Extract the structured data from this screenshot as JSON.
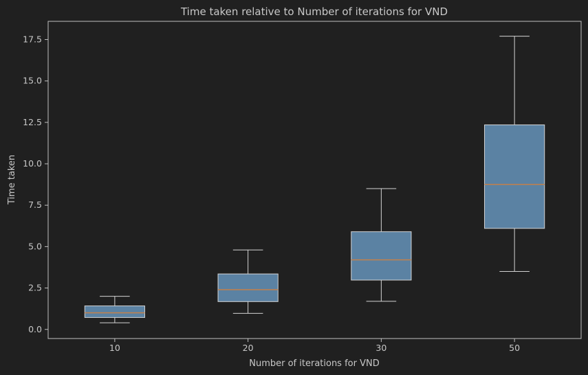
{
  "chart_data": {
    "type": "box",
    "title": "Time taken relative to Number of iterations for VND",
    "xlabel": "Number of iterations for VND",
    "ylabel": "Time taken",
    "categories": [
      "10",
      "20",
      "30",
      "50"
    ],
    "boxes": [
      {
        "category": "10",
        "whisker_low": 0.4,
        "q1": 0.72,
        "median": 1.0,
        "q3": 1.42,
        "whisker_high": 2.0
      },
      {
        "category": "20",
        "whisker_low": 0.97,
        "q1": 1.68,
        "median": 2.4,
        "q3": 3.35,
        "whisker_high": 4.8
      },
      {
        "category": "30",
        "whisker_low": 1.7,
        "q1": 2.98,
        "median": 4.2,
        "q3": 5.9,
        "whisker_high": 8.5
      },
      {
        "category": "50",
        "whisker_low": 3.5,
        "q1": 6.1,
        "median": 8.75,
        "q3": 12.35,
        "whisker_high": 17.7
      }
    ],
    "ylim": [
      -0.55,
      18.6
    ],
    "yticks": [
      "0.0",
      "2.5",
      "5.0",
      "7.5",
      "10.0",
      "12.5",
      "15.0",
      "17.5"
    ],
    "grid": false,
    "colors": {
      "background": "#202020",
      "box_fill": "#5b82a3",
      "box_edge": "#d4d4d4",
      "median": "#c4804a",
      "text": "#c8c8c8",
      "axes": "#c0c0c0"
    }
  }
}
